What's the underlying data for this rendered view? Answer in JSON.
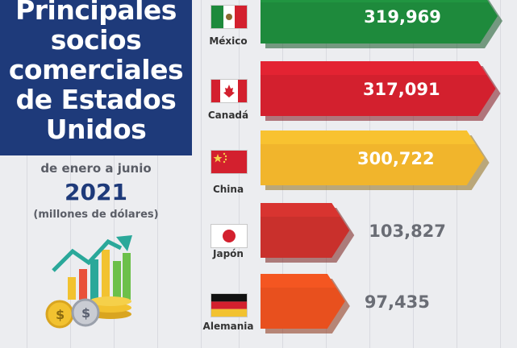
{
  "header": {
    "title": "Principales\nsocios\ncomerciales\nde Estados\nUnidos",
    "period": "de enero a junio",
    "year": "2021",
    "units": "(millones de dólares)"
  },
  "colors": {
    "panel": "#1e3a7a",
    "mexico": "#1e8a3c",
    "canada": "#d3202e",
    "china": "#f1b52c",
    "japon": "#c9302c",
    "alemania": "#e8501e"
  },
  "chart_data": {
    "type": "bar",
    "orientation": "horizontal",
    "title": "Principales socios comerciales de Estados Unidos",
    "subtitle": "de enero a junio 2021",
    "ylabel": "(millones de dólares)",
    "categories": [
      "México",
      "Canadá",
      "China",
      "Japón",
      "Alemania"
    ],
    "values": [
      319969,
      317091,
      300722,
      103827,
      97435
    ],
    "value_labels": [
      "319,969",
      "317,091",
      "300,722",
      "103,827",
      "97,435"
    ],
    "icons": [
      "mexico-flag-icon",
      "canada-flag-icon",
      "china-flag-icon",
      "japan-flag-icon",
      "germany-flag-icon"
    ],
    "grid": true
  }
}
